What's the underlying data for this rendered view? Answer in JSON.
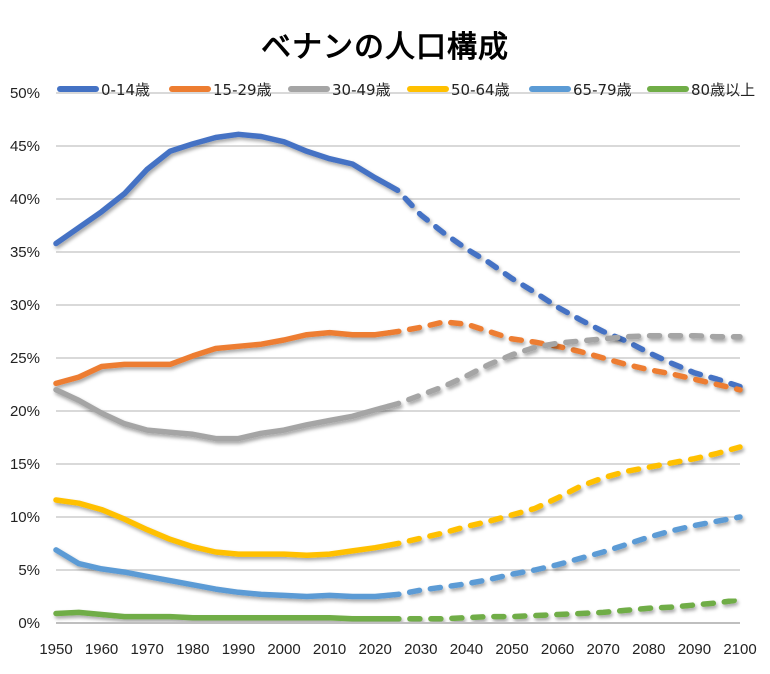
{
  "chart_data": {
    "type": "line",
    "title": "ベナンの人口構成",
    "xlabel": "",
    "ylabel": "",
    "xlim": [
      1950,
      2100
    ],
    "ylim": [
      0,
      50
    ],
    "grid": true,
    "legend_position": "top",
    "projection_start_year": 2023,
    "x_ticks": [
      "1950",
      "1960",
      "1970",
      "1980",
      "1990",
      "2000",
      "2010",
      "2020",
      "2030",
      "2040",
      "2050",
      "2060",
      "2070",
      "2080",
      "2090",
      "2100"
    ],
    "y_ticks": [
      "0%",
      "5%",
      "10%",
      "15%",
      "20%",
      "25%",
      "30%",
      "35%",
      "40%",
      "45%",
      "50%"
    ],
    "x": [
      1950,
      1955,
      1960,
      1965,
      1970,
      1975,
      1980,
      1985,
      1990,
      1995,
      2000,
      2005,
      2010,
      2015,
      2020,
      2025,
      2030,
      2035,
      2040,
      2045,
      2050,
      2055,
      2060,
      2065,
      2070,
      2075,
      2080,
      2085,
      2090,
      2095,
      2100
    ],
    "series": [
      {
        "name": "0-14歳",
        "color": "#4472C4",
        "values": [
          35.8,
          37.3,
          38.8,
          40.5,
          42.8,
          44.5,
          45.2,
          45.8,
          46.1,
          45.9,
          45.4,
          44.5,
          43.8,
          43.3,
          42.0,
          40.8,
          38.5,
          36.8,
          35.3,
          34.0,
          32.5,
          31.2,
          29.8,
          28.6,
          27.5,
          26.6,
          25.5,
          24.5,
          23.6,
          23.0,
          22.3
        ]
      },
      {
        "name": "15-29歳",
        "color": "#ED7D31",
        "values": [
          22.6,
          23.2,
          24.2,
          24.4,
          24.4,
          24.4,
          25.2,
          25.9,
          26.1,
          26.3,
          26.7,
          27.2,
          27.4,
          27.2,
          27.2,
          27.5,
          27.9,
          28.4,
          28.2,
          27.5,
          26.8,
          26.5,
          26.1,
          25.6,
          25.0,
          24.4,
          23.9,
          23.5,
          23.0,
          22.5,
          22.0
        ]
      },
      {
        "name": "30-49歳",
        "color": "#A5A5A5",
        "values": [
          22.0,
          21.0,
          19.8,
          18.8,
          18.2,
          18.0,
          17.8,
          17.4,
          17.4,
          17.9,
          18.2,
          18.7,
          19.1,
          19.5,
          20.1,
          20.7,
          21.5,
          22.3,
          23.3,
          24.4,
          25.3,
          26.0,
          26.4,
          26.6,
          26.8,
          27.0,
          27.1,
          27.1,
          27.1,
          27.0,
          27.0
        ]
      },
      {
        "name": "50-64歳",
        "color": "#FFC000",
        "values": [
          11.6,
          11.3,
          10.7,
          9.8,
          8.8,
          7.9,
          7.2,
          6.7,
          6.5,
          6.5,
          6.5,
          6.4,
          6.5,
          6.8,
          7.1,
          7.5,
          8.0,
          8.5,
          9.1,
          9.6,
          10.2,
          10.8,
          11.8,
          12.9,
          13.7,
          14.3,
          14.7,
          15.1,
          15.5,
          16.0,
          16.6
        ]
      },
      {
        "name": "65-79歳",
        "color": "#5B9BD5",
        "values": [
          6.9,
          5.6,
          5.1,
          4.8,
          4.4,
          4.0,
          3.6,
          3.2,
          2.9,
          2.7,
          2.6,
          2.5,
          2.6,
          2.5,
          2.5,
          2.7,
          3.1,
          3.4,
          3.7,
          4.1,
          4.6,
          5.0,
          5.5,
          6.1,
          6.7,
          7.4,
          8.1,
          8.7,
          9.2,
          9.6,
          10.0
        ]
      },
      {
        "name": "80歳以上",
        "color": "#70AD47",
        "values": [
          0.9,
          1.0,
          0.8,
          0.6,
          0.6,
          0.6,
          0.5,
          0.5,
          0.5,
          0.5,
          0.5,
          0.5,
          0.5,
          0.4,
          0.4,
          0.4,
          0.4,
          0.4,
          0.5,
          0.6,
          0.6,
          0.7,
          0.8,
          0.9,
          1.0,
          1.2,
          1.4,
          1.5,
          1.7,
          1.9,
          2.2
        ]
      }
    ]
  }
}
